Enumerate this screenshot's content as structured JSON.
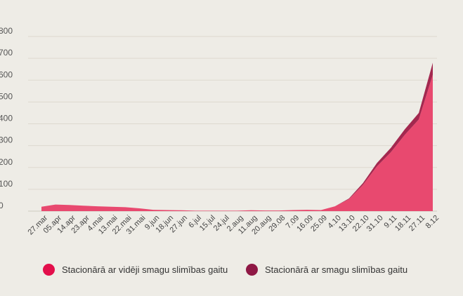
{
  "chart_data": {
    "type": "area",
    "stacked": true,
    "y_ticks": [
      "0",
      "100",
      "200",
      "300",
      "400",
      "500",
      "600",
      "700",
      "800"
    ],
    "ylim": [
      0,
      800
    ],
    "x_ticks": [
      "27.mar",
      "05.apr",
      "14.apr",
      "23.apr",
      "4.mai",
      "13.mai",
      "22.mai",
      "31.mai",
      "9.jun",
      "18.jun",
      "27.jun",
      "6.jul",
      "15.jul",
      "24.jul",
      "2.aug",
      "11.aug",
      "20.aug",
      "29.08",
      "7.09",
      "16.09",
      "25.09",
      "4.10",
      "13.10",
      "22.10",
      "31.10",
      "9.11",
      "18.11",
      "27.11",
      "8.12"
    ],
    "grid": true,
    "legend_position": "bottom",
    "series": [
      {
        "name": "Stacionārā ar vidēji smagu slimības gaitu",
        "color": "#e8496f",
        "values": [
          20,
          30,
          28,
          25,
          22,
          20,
          18,
          13,
          6,
          5,
          4,
          2,
          2,
          2,
          2,
          4,
          3,
          3,
          5,
          6,
          5,
          22,
          55,
          120,
          205,
          270,
          350,
          420,
          625
        ]
      },
      {
        "name": "Stacionārā ar smagu slimības gaitu",
        "color": "#a3284f",
        "values": [
          0,
          0,
          0,
          0,
          0,
          0,
          0,
          0,
          0,
          0,
          0,
          0,
          0,
          0,
          0,
          0,
          0,
          0,
          0,
          0,
          0,
          0,
          3,
          8,
          15,
          20,
          25,
          30,
          55
        ]
      }
    ]
  }
}
